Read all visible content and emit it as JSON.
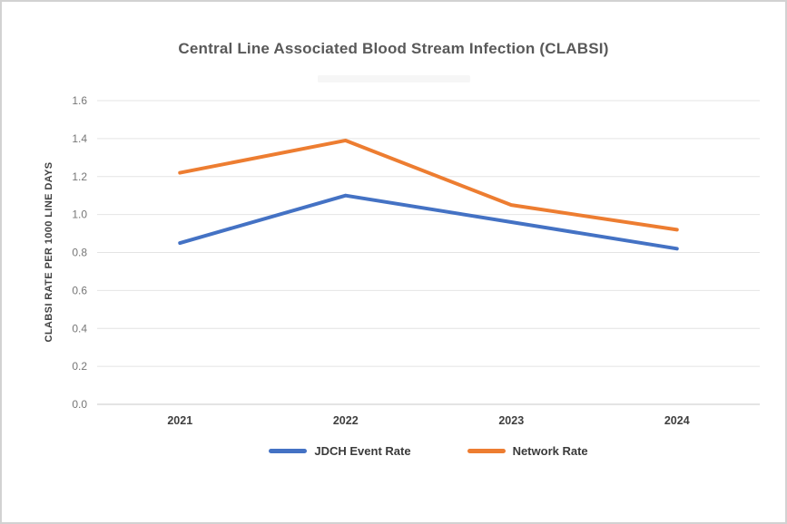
{
  "title": "Central Line Associated Blood Stream Infection (CLABSI)",
  "chart_data": {
    "type": "line",
    "title": "Central Line Associated Blood Stream Infection (CLABSI)",
    "categories": [
      "2021",
      "2022",
      "2023",
      "2024"
    ],
    "series": [
      {
        "name": "JDCH Event Rate",
        "color": "#4472C4",
        "values": [
          0.85,
          1.1,
          0.96,
          0.82
        ]
      },
      {
        "name": "Network Rate",
        "color": "#ED7D31",
        "values": [
          1.22,
          1.39,
          1.05,
          0.92
        ]
      }
    ],
    "xlabel": "",
    "ylabel": "CLABSI RATE PER 1000 LINE DAYS",
    "ylim": [
      0.0,
      1.6
    ],
    "ytick_step": 0.2,
    "ytick_labels": [
      "0.0",
      "0.2",
      "0.4",
      "0.6",
      "0.8",
      "1.0",
      "1.2",
      "1.4",
      "1.6"
    ],
    "grid": true,
    "legend_position": "bottom-center",
    "line_width": 4
  },
  "colors": {
    "title_text": "#595959",
    "grid_line": "#e4e4e4",
    "axis_line": "#c9c9c9",
    "y_tick_text": "#767676",
    "x_tick_text": "#3f3f3f",
    "legend_text": "#3a3a3a",
    "frame_border": "#d2d2d2",
    "background": "#ffffff"
  }
}
